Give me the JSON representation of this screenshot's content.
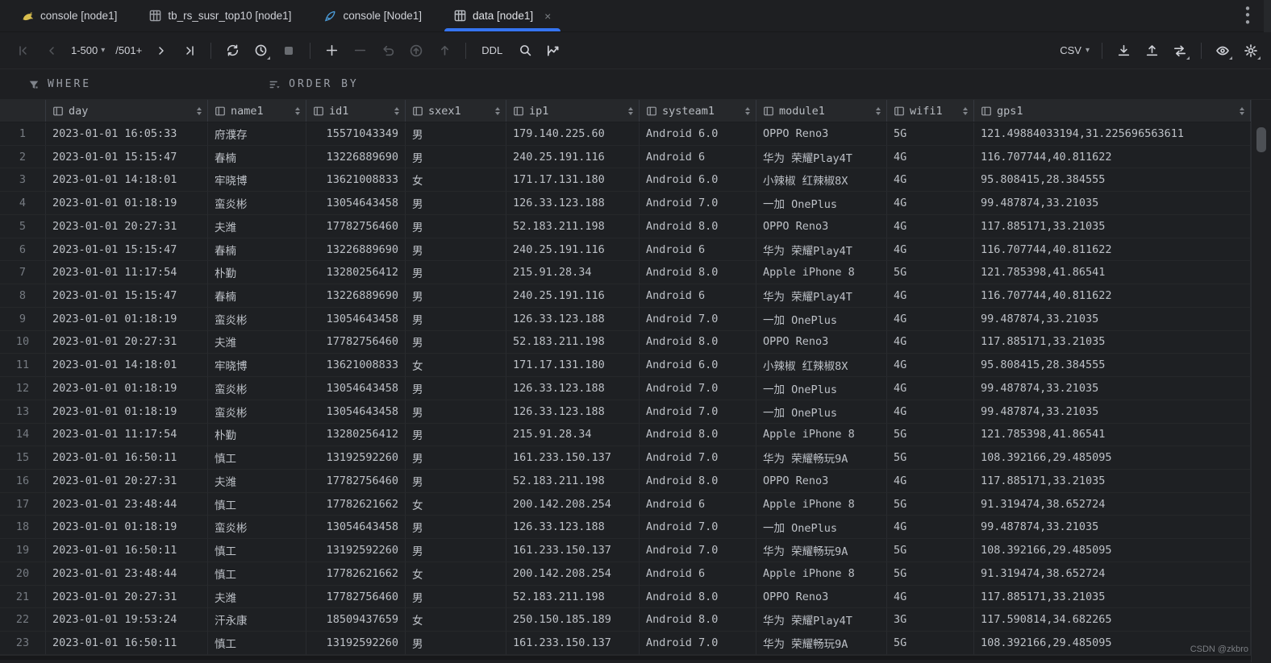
{
  "tab_bar": {
    "tabs": [
      {
        "label": "console [node1]",
        "icon": "mysql-icon",
        "active": false
      },
      {
        "label": "tb_rs_susr_top10 [node1]",
        "icon": "table-icon",
        "active": false
      },
      {
        "label": "console [Node1]",
        "icon": "console-icon",
        "active": false
      },
      {
        "label": "data [node1]",
        "icon": "table-icon",
        "active": true,
        "close_label": "×"
      }
    ]
  },
  "toolbar": {
    "page_range": "1-500",
    "page_total": "/501+",
    "ddl_label": "DDL",
    "export_format": "CSV"
  },
  "filter_bar": {
    "where_label": "WHERE",
    "order_by_label": "ORDER BY"
  },
  "table": {
    "columns": [
      "day",
      "name1",
      "id1",
      "sxex1",
      "ip1",
      "systeam1",
      "module1",
      "wifi1",
      "gps1"
    ],
    "rows": [
      [
        "2023-01-01 16:05:33",
        "府濮存",
        "15571043349",
        "男",
        "179.140.225.60",
        "Android 6.0",
        "OPPO Reno3",
        "5G",
        "121.49884033194,31.225696563611"
      ],
      [
        "2023-01-01 15:15:47",
        "春楠",
        "13226889690",
        "男",
        "240.25.191.116",
        "Android 6",
        "华为 荣耀Play4T",
        "4G",
        "116.707744,40.811622"
      ],
      [
        "2023-01-01 14:18:01",
        "牢晓博",
        "13621008833",
        "女",
        "171.17.131.180",
        "Android 6.0",
        "小辣椒 红辣椒8X",
        "4G",
        "95.808415,28.384555"
      ],
      [
        "2023-01-01 01:18:19",
        "蛮炎彬",
        "13054643458",
        "男",
        "126.33.123.188",
        "Android 7.0",
        "一加 OnePlus",
        "4G",
        "99.487874,33.21035"
      ],
      [
        "2023-01-01 20:27:31",
        "夫潍",
        "17782756460",
        "男",
        "52.183.211.198",
        "Android 8.0",
        "OPPO Reno3",
        "4G",
        "117.885171,33.21035"
      ],
      [
        "2023-01-01 15:15:47",
        "春楠",
        "13226889690",
        "男",
        "240.25.191.116",
        "Android 6",
        "华为 荣耀Play4T",
        "4G",
        "116.707744,40.811622"
      ],
      [
        "2023-01-01 11:17:54",
        "朴勤",
        "13280256412",
        "男",
        "215.91.28.34",
        "Android 8.0",
        "Apple iPhone 8",
        "5G",
        "121.785398,41.86541"
      ],
      [
        "2023-01-01 15:15:47",
        "春楠",
        "13226889690",
        "男",
        "240.25.191.116",
        "Android 6",
        "华为 荣耀Play4T",
        "4G",
        "116.707744,40.811622"
      ],
      [
        "2023-01-01 01:18:19",
        "蛮炎彬",
        "13054643458",
        "男",
        "126.33.123.188",
        "Android 7.0",
        "一加 OnePlus",
        "4G",
        "99.487874,33.21035"
      ],
      [
        "2023-01-01 20:27:31",
        "夫潍",
        "17782756460",
        "男",
        "52.183.211.198",
        "Android 8.0",
        "OPPO Reno3",
        "4G",
        "117.885171,33.21035"
      ],
      [
        "2023-01-01 14:18:01",
        "牢晓博",
        "13621008833",
        "女",
        "171.17.131.180",
        "Android 6.0",
        "小辣椒 红辣椒8X",
        "4G",
        "95.808415,28.384555"
      ],
      [
        "2023-01-01 01:18:19",
        "蛮炎彬",
        "13054643458",
        "男",
        "126.33.123.188",
        "Android 7.0",
        "一加 OnePlus",
        "4G",
        "99.487874,33.21035"
      ],
      [
        "2023-01-01 01:18:19",
        "蛮炎彬",
        "13054643458",
        "男",
        "126.33.123.188",
        "Android 7.0",
        "一加 OnePlus",
        "4G",
        "99.487874,33.21035"
      ],
      [
        "2023-01-01 11:17:54",
        "朴勤",
        "13280256412",
        "男",
        "215.91.28.34",
        "Android 8.0",
        "Apple iPhone 8",
        "5G",
        "121.785398,41.86541"
      ],
      [
        "2023-01-01 16:50:11",
        "慎工",
        "13192592260",
        "男",
        "161.233.150.137",
        "Android 7.0",
        "华为 荣耀畅玩9A",
        "5G",
        "108.392166,29.485095"
      ],
      [
        "2023-01-01 20:27:31",
        "夫潍",
        "17782756460",
        "男",
        "52.183.211.198",
        "Android 8.0",
        "OPPO Reno3",
        "4G",
        "117.885171,33.21035"
      ],
      [
        "2023-01-01 23:48:44",
        "慎工",
        "17782621662",
        "女",
        "200.142.208.254",
        "Android 6",
        "Apple iPhone 8",
        "5G",
        "91.319474,38.652724"
      ],
      [
        "2023-01-01 01:18:19",
        "蛮炎彬",
        "13054643458",
        "男",
        "126.33.123.188",
        "Android 7.0",
        "一加 OnePlus",
        "4G",
        "99.487874,33.21035"
      ],
      [
        "2023-01-01 16:50:11",
        "慎工",
        "13192592260",
        "男",
        "161.233.150.137",
        "Android 7.0",
        "华为 荣耀畅玩9A",
        "5G",
        "108.392166,29.485095"
      ],
      [
        "2023-01-01 23:48:44",
        "慎工",
        "17782621662",
        "女",
        "200.142.208.254",
        "Android 6",
        "Apple iPhone 8",
        "5G",
        "91.319474,38.652724"
      ],
      [
        "2023-01-01 20:27:31",
        "夫潍",
        "17782756460",
        "男",
        "52.183.211.198",
        "Android 8.0",
        "OPPO Reno3",
        "4G",
        "117.885171,33.21035"
      ],
      [
        "2023-01-01 19:53:24",
        "汗永康",
        "18509437659",
        "女",
        "250.150.185.189",
        "Android 8.0",
        "华为 荣耀Play4T",
        "3G",
        "117.590814,34.682265"
      ],
      [
        "2023-01-01 16:50:11",
        "慎工",
        "13192592260",
        "男",
        "161.233.150.137",
        "Android 7.0",
        "华为 荣耀畅玩9A",
        "5G",
        "108.392166,29.485095"
      ]
    ]
  },
  "watermark": "CSDN @zkbro",
  "colors": {
    "accent": "#3574f0"
  }
}
